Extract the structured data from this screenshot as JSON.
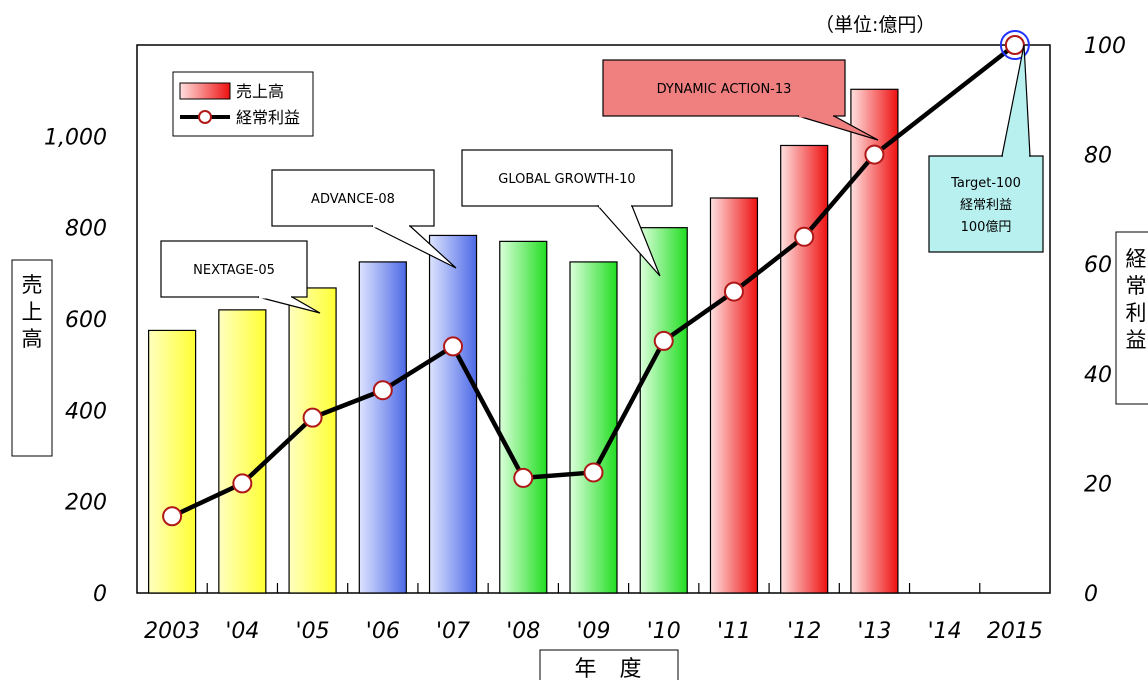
{
  "chart_data": {
    "type": "bar",
    "unit_note": "（単位:億円）",
    "xlabel": "年 度",
    "ylabel": "売上高",
    "y2label": "経常利益",
    "categories": [
      "2003",
      "'04",
      "'05",
      "'06",
      "'07",
      "'08",
      "'09",
      "'10",
      "'11",
      "'12",
      "'13",
      "'14",
      "2015"
    ],
    "ylim": [
      0,
      1200
    ],
    "y_ticks": [
      "0",
      "200",
      "400",
      "600",
      "800",
      "1,000"
    ],
    "y_tick_values": [
      0,
      200,
      400,
      600,
      800,
      1000
    ],
    "y2lim": [
      0,
      100
    ],
    "y2_ticks": [
      "0",
      "20",
      "40",
      "60",
      "80",
      "100"
    ],
    "y2_tick_values": [
      0,
      20,
      40,
      60,
      80,
      100
    ],
    "series": [
      {
        "name": "売上高",
        "kind": "bar",
        "values": [
          575,
          620,
          668,
          725,
          783,
          770,
          725,
          800,
          865,
          980,
          1103,
          null,
          null
        ],
        "groups": [
          "yellow",
          "yellow",
          "yellow",
          "blue",
          "blue",
          "green",
          "green",
          "green",
          "red",
          "red",
          "red",
          null,
          null
        ]
      },
      {
        "name": "経常利益",
        "kind": "line",
        "axis": "right",
        "values": [
          14,
          20,
          32,
          37,
          45,
          21,
          22,
          46,
          55,
          65,
          80,
          null,
          100
        ]
      }
    ],
    "group_colors": {
      "yellow": [
        "#ffffc0",
        "#ffff33"
      ],
      "blue": [
        "#dde3ff",
        "#4d6ae6"
      ],
      "green": [
        "#dbffdb",
        "#22dd22"
      ],
      "red": [
        "#ffe0e0",
        "#ee1111"
      ]
    },
    "line_color": "#000000",
    "marker_color": "#b01818",
    "target_marker_color": "#2233ff",
    "callouts": [
      {
        "id": "nextage",
        "lines": [
          "NEXTAGE-05"
        ],
        "fill": "#ffffff"
      },
      {
        "id": "advance",
        "lines": [
          "ADVANCE-08"
        ],
        "fill": "#ffffff"
      },
      {
        "id": "global",
        "lines": [
          "GLOBAL GROWTH-10"
        ],
        "fill": "#ffffff"
      },
      {
        "id": "dynamic",
        "lines": [
          "DYNAMIC ACTION-13"
        ],
        "fill": "#f08080"
      },
      {
        "id": "target",
        "lines": [
          "Target-100",
          "経常利益",
          "100億円"
        ],
        "fill": "#b8f0f0"
      }
    ],
    "grid": false,
    "legend": "top-left"
  }
}
